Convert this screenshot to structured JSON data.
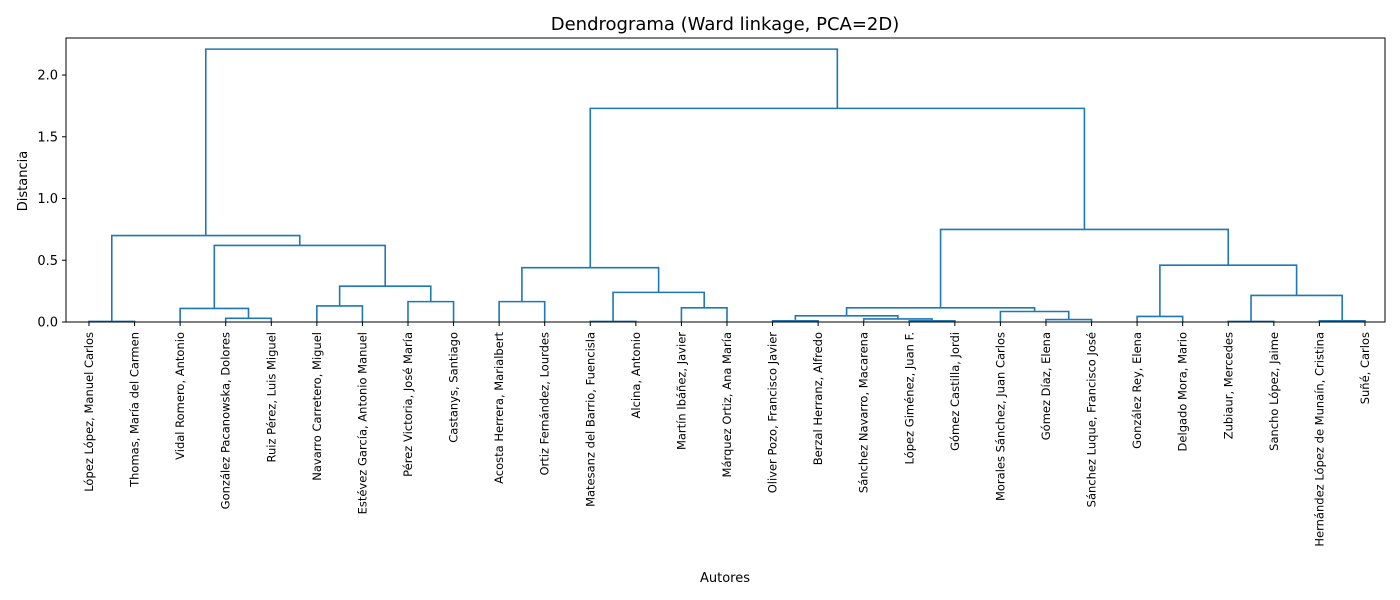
{
  "chart_data": {
    "type": "dendrogram",
    "title": "Dendrograma (Ward linkage, PCA=2D)",
    "xlabel": "Autores",
    "ylabel": "Distancia",
    "ylim": [
      0,
      2.3
    ],
    "yticks": [
      "0.0",
      "0.5",
      "1.0",
      "1.5",
      "2.0"
    ],
    "grid": false,
    "link_color": "#1f77b4",
    "leaves": [
      "López López, Manuel Carlos",
      "Thomas, María del Carmen",
      "Vidal Romero, Antonio",
      "González Pacanowska, Dolores",
      "Ruiz Pérez, Luis Miguel",
      "Navarro Carretero, Miguel",
      "Estévez García, Antonio Manuel",
      "Pérez Victoria, José María",
      "Castanys, Santiago",
      "Acosta Herrera, Marialbert",
      "Ortiz Fernández, Lourdes",
      "Matesanz del Barrio, Fuencisla",
      "Alcina, Antonio",
      "Martín Ibáñez, Javier",
      "Márquez Ortiz, Ana María",
      "Oliver Pozo, Francisco Javier",
      "Berzal Herranz, Alfredo",
      "Sánchez Navarro, Macarena",
      "López Giménez, Juan F.",
      "Gómez Castilla, Jordi",
      "Morales Sánchez, Juan Carlos",
      "Gómez Díaz, Elena",
      "Sánchez Luque, Francisco José",
      "González Rey, Elena",
      "Delgado Mora, Mario",
      "Zubiaur, Mercedes",
      "Sancho López, Jaime",
      "Hernández López de Munaín, Cristina",
      "Suñé, Carlos"
    ],
    "merges": [
      {
        "a": 0,
        "b": 1,
        "height": 0.005
      },
      {
        "a": 3,
        "b": 4,
        "height": 0.03
      },
      {
        "a": 2,
        "b": 30,
        "height": 0.11
      },
      {
        "a": 5,
        "b": 6,
        "height": 0.13
      },
      {
        "a": 7,
        "b": 8,
        "height": 0.165
      },
      {
        "a": 32,
        "b": 33,
        "height": 0.29
      },
      {
        "a": 31,
        "b": 34,
        "height": 0.62
      },
      {
        "a": 29,
        "b": 35,
        "height": 0.7
      },
      {
        "a": 9,
        "b": 10,
        "height": 0.165
      },
      {
        "a": 11,
        "b": 12,
        "height": 0.005
      },
      {
        "a": 13,
        "b": 14,
        "height": 0.115
      },
      {
        "a": 38,
        "b": 39,
        "height": 0.24
      },
      {
        "a": 37,
        "b": 40,
        "height": 0.44
      },
      {
        "a": 15,
        "b": 16,
        "height": 0.01
      },
      {
        "a": 18,
        "b": 19,
        "height": 0.01
      },
      {
        "a": 17,
        "b": 43,
        "height": 0.025
      },
      {
        "a": 42,
        "b": 44,
        "height": 0.05
      },
      {
        "a": 21,
        "b": 22,
        "height": 0.02
      },
      {
        "a": 20,
        "b": 46,
        "height": 0.085
      },
      {
        "a": 45,
        "b": 47,
        "height": 0.115
      },
      {
        "a": 23,
        "b": 24,
        "height": 0.045
      },
      {
        "a": 25,
        "b": 26,
        "height": 0.005
      },
      {
        "a": 27,
        "b": 28,
        "height": 0.01
      },
      {
        "a": 50,
        "b": 51,
        "height": 0.215
      },
      {
        "a": 49,
        "b": 52,
        "height": 0.46
      },
      {
        "a": 48,
        "b": 53,
        "height": 0.75
      },
      {
        "a": 41,
        "b": 54,
        "height": 1.73
      },
      {
        "a": 36,
        "b": 55,
        "height": 2.21
      }
    ]
  }
}
